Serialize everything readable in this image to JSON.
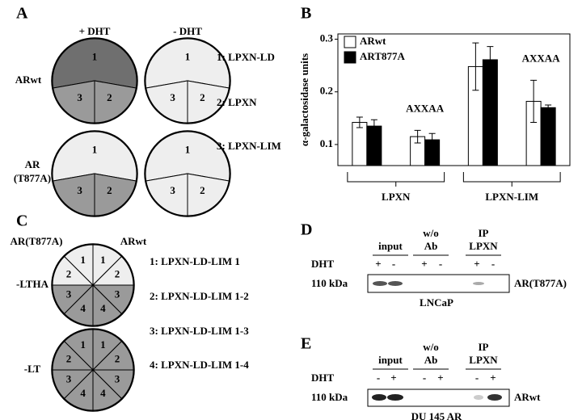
{
  "panels": {
    "A": {
      "label": "A",
      "columns": [
        "+ DHT",
        "- DHT"
      ],
      "rows": [
        [
          "ARwt"
        ],
        [
          "AR",
          "(T877A)"
        ]
      ],
      "sectors": [
        "1",
        "2",
        "3"
      ],
      "legend": [
        "1: LPXN-LD",
        "2: LPXN",
        "3: LPXN-LIM"
      ]
    },
    "C": {
      "label": "C",
      "columns": [
        "AR(T877A)",
        "ARwt"
      ],
      "rows": [
        "-LTHA",
        "-LT"
      ],
      "sectors": [
        "1",
        "2",
        "3",
        "4"
      ],
      "legend": [
        "1: LPXN-LD-LIM 1",
        "2: LPXN-LD-LIM 1-2",
        "3: LPXN-LD-LIM 1-3",
        "4: LPXN-LD-LIM 1-4"
      ]
    },
    "D": {
      "label": "D",
      "headers": [
        [
          "input"
        ],
        [
          "w/o",
          "Ab"
        ],
        [
          "IP",
          "LPXN"
        ]
      ],
      "treatment": "DHT",
      "signs": [
        "+",
        "-",
        "+",
        "-",
        "+",
        "-"
      ],
      "marker": "110 kDa",
      "band": "AR(T877A)",
      "cell_line": "LNCaP"
    },
    "E": {
      "label": "E",
      "headers": [
        [
          "input"
        ],
        [
          "w/o",
          "Ab"
        ],
        [
          "IP",
          "LPXN"
        ]
      ],
      "treatment": "DHT",
      "signs": [
        "-",
        "+",
        "-",
        "+",
        "-",
        "+"
      ],
      "marker": "110 kDa",
      "band": "ARwt",
      "cell_line": "DU 145 AR"
    }
  },
  "chart_data": {
    "label": "B",
    "type": "bar",
    "ylabel": "α-galactosidase units",
    "categories": [
      null,
      null,
      null,
      null
    ],
    "series": [
      {
        "name": "ARwt",
        "color": "#ffffff",
        "values": [
          0.142,
          0.115,
          0.248,
          0.182
        ],
        "errors": [
          0.01,
          0.012,
          0.045,
          0.04
        ]
      },
      {
        "name": "ART877A",
        "color": "#000000",
        "values": [
          0.135,
          0.109,
          0.261,
          0.17
        ],
        "errors": [
          0.012,
          0.012,
          0.025,
          0.005
        ]
      }
    ],
    "annotations": [
      {
        "text": "AXXAA",
        "category": 1
      },
      {
        "text": "AXXAA",
        "category": 3
      }
    ],
    "groups": [
      {
        "label": "LPXN",
        "categories": [
          0,
          1
        ]
      },
      {
        "label": "LPXN-LIM",
        "categories": [
          2,
          3
        ]
      }
    ],
    "ylim": [
      0.06,
      0.31
    ],
    "yticks": [
      0.1,
      0.2,
      0.3
    ],
    "legend": "upper left"
  }
}
